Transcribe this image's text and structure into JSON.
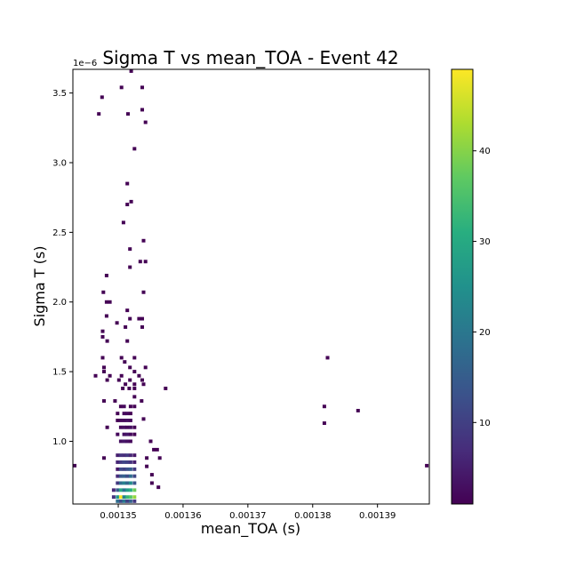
{
  "chart_data": {
    "type": "heatmap",
    "title": "Sigma T vs mean_TOA - Event 42",
    "xlabel": "mean_TOA (s)",
    "ylabel": "Sigma T (s)",
    "y_offset_label": "1e−6",
    "xlim": [
      0.001343,
      0.001398
    ],
    "ylim": [
      0.55,
      3.67
    ],
    "x_ticks": [
      0.00135,
      0.00136,
      0.00137,
      0.00138,
      0.00139
    ],
    "x_tick_labels": [
      "0.00135",
      "0.00136",
      "0.00137",
      "0.00138",
      "0.00139"
    ],
    "y_ticks": [
      1.0,
      1.5,
      2.0,
      2.5,
      3.0,
      3.5
    ],
    "y_tick_labels": [
      "1.0",
      "1.5",
      "2.0",
      "2.5",
      "3.0",
      "3.5"
    ],
    "colorbar": {
      "colormap": "viridis",
      "range": [
        1,
        49
      ],
      "ticks": [
        10,
        20,
        30,
        40
      ],
      "tick_labels": [
        "10",
        "20",
        "30",
        "40"
      ]
    },
    "bin_width_x": 5.5e-07,
    "bin_height_y": 0.025,
    "bins": [
      [
        0.001343,
        0.825,
        1
      ],
      [
        0.0013976,
        0.825,
        1
      ],
      [
        0.001352,
        3.665,
        1
      ],
      [
        0.0013505,
        3.54,
        1
      ],
      [
        0.0013537,
        3.54,
        1
      ],
      [
        0.0013475,
        3.47,
        1
      ],
      [
        0.001347,
        3.35,
        1
      ],
      [
        0.0013515,
        3.35,
        1
      ],
      [
        0.0013537,
        3.38,
        1
      ],
      [
        0.0013542,
        3.29,
        1
      ],
      [
        0.0013525,
        3.1,
        1
      ],
      [
        0.0013514,
        2.85,
        1
      ],
      [
        0.0013514,
        2.7,
        1
      ],
      [
        0.001352,
        2.72,
        1
      ],
      [
        0.0013508,
        2.57,
        1
      ],
      [
        0.0013539,
        2.44,
        1
      ],
      [
        0.0013518,
        2.38,
        1
      ],
      [
        0.0013534,
        2.29,
        1
      ],
      [
        0.0013542,
        2.29,
        1
      ],
      [
        0.0013518,
        2.25,
        1
      ],
      [
        0.0013482,
        2.19,
        1
      ],
      [
        0.0013539,
        2.07,
        1
      ],
      [
        0.0013477,
        2.07,
        1
      ],
      [
        0.0013482,
        2.0,
        1
      ],
      [
        0.0013487,
        2.0,
        1
      ],
      [
        0.0013514,
        1.94,
        1
      ],
      [
        0.0013482,
        1.9,
        1
      ],
      [
        0.0013518,
        1.88,
        1
      ],
      [
        0.0013532,
        1.88,
        1
      ],
      [
        0.0013537,
        1.88,
        1
      ],
      [
        0.0013498,
        1.85,
        1
      ],
      [
        0.0013511,
        1.82,
        1
      ],
      [
        0.0013476,
        1.79,
        1
      ],
      [
        0.0013476,
        1.75,
        1
      ],
      [
        0.0013537,
        1.82,
        1
      ],
      [
        0.0013483,
        1.72,
        1
      ],
      [
        0.0013514,
        1.72,
        1
      ],
      [
        0.0013505,
        1.6,
        1
      ],
      [
        0.0013476,
        1.6,
        1
      ],
      [
        0.0013525,
        1.6,
        1
      ],
      [
        0.001351,
        1.57,
        1
      ],
      [
        0.0013478,
        1.53,
        1
      ],
      [
        0.0013518,
        1.53,
        1
      ],
      [
        0.0013542,
        1.53,
        1
      ],
      [
        0.0013478,
        1.5,
        1
      ],
      [
        0.0013525,
        1.5,
        1
      ],
      [
        0.0013465,
        1.47,
        1
      ],
      [
        0.0013487,
        1.47,
        1
      ],
      [
        0.0013505,
        1.47,
        1
      ],
      [
        0.0013532,
        1.47,
        1
      ],
      [
        0.0013483,
        1.44,
        1
      ],
      [
        0.0013501,
        1.44,
        1
      ],
      [
        0.0013518,
        1.44,
        1
      ],
      [
        0.0013537,
        1.44,
        1
      ],
      [
        0.0013511,
        1.41,
        1
      ],
      [
        0.0013525,
        1.41,
        1
      ],
      [
        0.0013539,
        1.41,
        1
      ],
      [
        0.0013573,
        1.38,
        1
      ],
      [
        0.0013507,
        1.38,
        1
      ],
      [
        0.0013517,
        1.38,
        1
      ],
      [
        0.0013525,
        1.38,
        1
      ],
      [
        0.0013823,
        1.6,
        1
      ],
      [
        0.0013818,
        1.25,
        1
      ],
      [
        0.001387,
        1.22,
        1
      ],
      [
        0.0013818,
        1.13,
        1
      ],
      [
        0.0013478,
        1.29,
        1
      ],
      [
        0.0013495,
        1.29,
        1
      ],
      [
        0.0013536,
        1.29,
        1
      ],
      [
        0.0013525,
        1.32,
        1
      ],
      [
        0.0013539,
        1.16,
        1
      ],
      [
        0.0013483,
        1.1,
        1
      ],
      [
        0.0013478,
        0.88,
        1
      ],
      [
        0.0013564,
        0.88,
        1
      ],
      [
        0.0013555,
        0.94,
        1
      ],
      [
        0.001356,
        0.94,
        1
      ],
      [
        0.001355,
        1.0,
        1
      ],
      [
        0.0013552,
        0.76,
        1
      ],
      [
        0.0013552,
        0.7,
        1
      ],
      [
        0.0013562,
        0.67,
        1
      ],
      [
        0.0013544,
        0.88,
        1
      ],
      [
        0.0013544,
        0.82,
        1
      ],
      [
        0.0013499,
        0.9,
        5
      ],
      [
        0.0013504,
        0.9,
        8
      ],
      [
        0.0013509,
        0.9,
        7
      ],
      [
        0.0013514,
        0.9,
        9
      ],
      [
        0.0013519,
        0.9,
        6
      ],
      [
        0.0013525,
        0.9,
        4
      ],
      [
        0.0013499,
        0.85,
        6
      ],
      [
        0.0013504,
        0.85,
        9
      ],
      [
        0.0013509,
        0.85,
        11
      ],
      [
        0.0013514,
        0.85,
        10
      ],
      [
        0.0013519,
        0.85,
        8
      ],
      [
        0.0013525,
        0.85,
        5
      ],
      [
        0.0013499,
        0.8,
        4
      ],
      [
        0.0013504,
        0.8,
        12
      ],
      [
        0.0013509,
        0.8,
        10
      ],
      [
        0.0013514,
        0.8,
        13
      ],
      [
        0.0013519,
        0.8,
        15
      ],
      [
        0.0013525,
        0.8,
        9
      ],
      [
        0.0013499,
        0.75,
        7
      ],
      [
        0.0013504,
        0.75,
        14
      ],
      [
        0.0013509,
        0.75,
        16
      ],
      [
        0.0013514,
        0.75,
        12
      ],
      [
        0.0013519,
        0.75,
        18
      ],
      [
        0.0013525,
        0.75,
        11
      ],
      [
        0.0013499,
        0.7,
        9
      ],
      [
        0.0013504,
        0.7,
        18
      ],
      [
        0.0013509,
        0.7,
        22
      ],
      [
        0.0013514,
        0.7,
        17
      ],
      [
        0.0013519,
        0.7,
        24
      ],
      [
        0.0013525,
        0.7,
        14
      ],
      [
        0.0013493,
        0.65,
        6
      ],
      [
        0.0013499,
        0.65,
        15
      ],
      [
        0.0013504,
        0.65,
        30
      ],
      [
        0.0013509,
        0.65,
        19
      ],
      [
        0.0013514,
        0.65,
        27
      ],
      [
        0.0013519,
        0.65,
        31
      ],
      [
        0.0013525,
        0.65,
        38
      ],
      [
        0.0013493,
        0.6,
        8
      ],
      [
        0.0013499,
        0.6,
        26
      ],
      [
        0.0013504,
        0.6,
        49
      ],
      [
        0.0013509,
        0.6,
        22
      ],
      [
        0.0013514,
        0.6,
        33
      ],
      [
        0.0013519,
        0.6,
        36
      ],
      [
        0.0013525,
        0.6,
        41
      ],
      [
        0.0013499,
        0.57,
        18
      ],
      [
        0.0013504,
        0.57,
        12
      ],
      [
        0.0013509,
        0.57,
        20
      ],
      [
        0.0013514,
        0.57,
        10
      ],
      [
        0.0013519,
        0.57,
        16
      ],
      [
        0.0013525,
        0.57,
        9
      ],
      [
        0.0013504,
        1.0,
        3
      ],
      [
        0.0013509,
        1.0,
        4
      ],
      [
        0.0013514,
        1.0,
        3
      ],
      [
        0.0013519,
        1.0,
        2
      ],
      [
        0.0013499,
        1.05,
        2
      ],
      [
        0.0013509,
        1.05,
        3
      ],
      [
        0.0013514,
        1.05,
        4
      ],
      [
        0.0013519,
        1.05,
        2
      ],
      [
        0.0013525,
        1.05,
        1
      ],
      [
        0.0013504,
        1.1,
        2
      ],
      [
        0.0013509,
        1.1,
        3
      ],
      [
        0.0013514,
        1.1,
        2
      ],
      [
        0.0013519,
        1.1,
        3
      ],
      [
        0.0013525,
        1.1,
        1
      ],
      [
        0.0013499,
        1.15,
        1
      ],
      [
        0.0013504,
        1.15,
        2
      ],
      [
        0.0013509,
        1.15,
        2
      ],
      [
        0.0013514,
        1.15,
        3
      ],
      [
        0.0013519,
        1.15,
        2
      ],
      [
        0.0013499,
        1.2,
        1
      ],
      [
        0.0013509,
        1.2,
        2
      ],
      [
        0.0013514,
        1.2,
        2
      ],
      [
        0.0013519,
        1.2,
        1
      ],
      [
        0.0013504,
        1.25,
        1
      ],
      [
        0.0013509,
        1.25,
        2
      ],
      [
        0.0013519,
        1.25,
        1
      ],
      [
        0.0013525,
        1.25,
        1
      ]
    ]
  }
}
